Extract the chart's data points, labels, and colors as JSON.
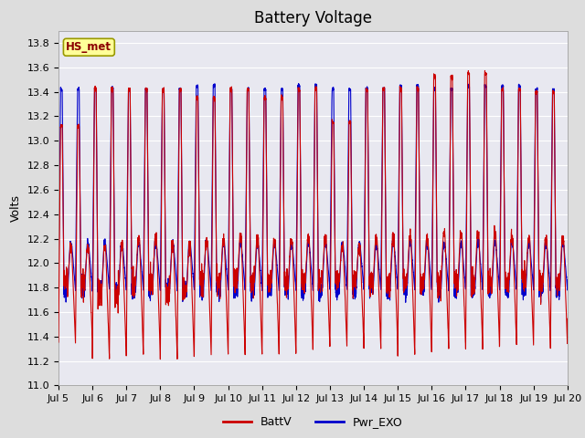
{
  "title": "Battery Voltage",
  "ylabel": "Volts",
  "ylim": [
    11.0,
    13.9
  ],
  "yticks": [
    11.0,
    11.2,
    11.4,
    11.6,
    11.8,
    12.0,
    12.2,
    12.4,
    12.6,
    12.8,
    13.0,
    13.2,
    13.4,
    13.6,
    13.8
  ],
  "xtick_labels": [
    "Jul 5",
    "Jul 6",
    "Jul 7",
    "Jul 8",
    "Jul 9",
    "Jul 10",
    "Jul 11",
    "Jul 12",
    "Jul 13",
    "Jul 14",
    "Jul 15",
    "Jul 16",
    "Jul 17",
    "Jul 18",
    "Jul 19",
    "Jul 20"
  ],
  "batt_color": "#cc0000",
  "pwr_color": "#0000cc",
  "legend_label1": "BattV",
  "legend_label2": "Pwr_EXO",
  "annotation_text": "HS_met",
  "annotation_bgcolor": "#ffff99",
  "annotation_edgecolor": "#999900",
  "fig_bg": "#dddddd",
  "plot_bg": "#e8e8f0",
  "title_fontsize": 12,
  "axis_fontsize": 9,
  "tick_fontsize": 8,
  "n_days": 16,
  "batt_peaks": [
    13.12,
    13.42,
    13.42,
    13.42,
    13.35,
    13.42,
    13.35,
    13.42,
    13.15,
    13.42,
    13.42,
    13.52,
    13.55,
    13.42,
    13.4,
    13.42
  ],
  "batt_mins1": [
    11.35,
    11.22,
    11.25,
    11.22,
    11.25,
    11.25,
    11.25,
    11.28,
    11.32,
    11.3,
    11.25,
    11.3,
    11.3,
    11.32,
    11.32,
    11.42
  ],
  "batt_mids": [
    11.85,
    11.75,
    11.85,
    11.75,
    11.85,
    11.85,
    11.85,
    11.85,
    11.85,
    11.85,
    11.85,
    11.85,
    11.85,
    11.85,
    11.85,
    11.85
  ],
  "pwr_peaks": [
    13.42,
    13.42,
    13.42,
    13.42,
    13.45,
    13.42,
    13.42,
    13.45,
    13.42,
    13.42,
    13.45,
    13.42,
    13.45,
    13.45,
    13.42,
    13.42
  ],
  "pwr_mins1": [
    11.78,
    11.78,
    11.78,
    11.78,
    11.78,
    11.78,
    11.78,
    11.78,
    11.78,
    11.78,
    11.78,
    11.78,
    11.78,
    11.78,
    11.78,
    11.78
  ],
  "pwr_mids": [
    11.78,
    11.78,
    11.78,
    11.78,
    11.78,
    11.78,
    11.78,
    11.78,
    11.78,
    11.78,
    11.78,
    11.78,
    11.78,
    11.78,
    11.78,
    11.78
  ]
}
